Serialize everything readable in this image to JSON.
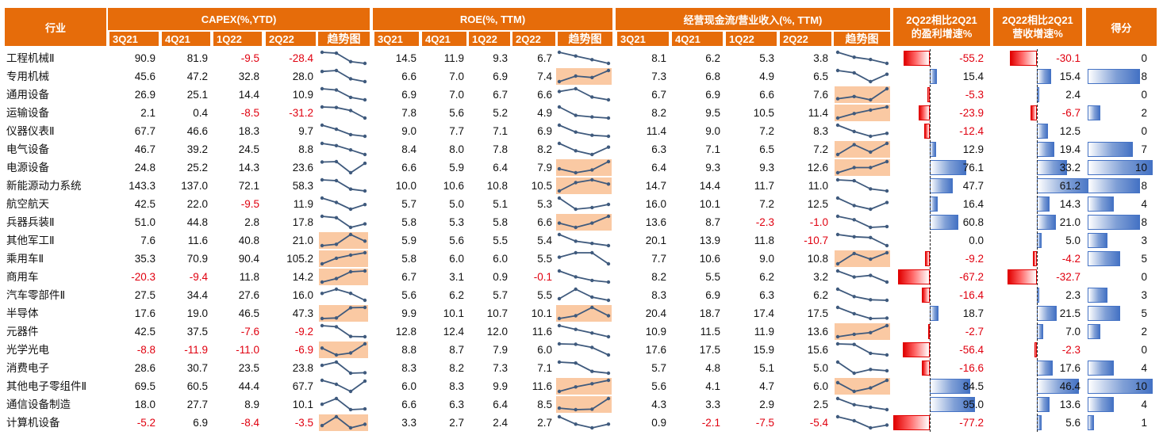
{
  "chart_data": {
    "type": "table",
    "headers": {
      "industry": "行业",
      "capex": "CAPEX(%,YTD)",
      "roe": "ROE(%, TTM)",
      "cash": "经营现金流/营业收入(%, TTM)",
      "profit_growth_line1": "2Q22相比2Q21",
      "profit_growth_line2": "的盈利增速%",
      "revenue_growth_line1": "2Q22相比2Q21",
      "revenue_growth_line2": "营收增速%",
      "score": "得分",
      "quarters": [
        "3Q21",
        "4Q21",
        "1Q22",
        "2Q22"
      ],
      "trend": "趋势图"
    },
    "rows": [
      {
        "name": "工程机械Ⅱ",
        "capex": [
          90.9,
          81.9,
          -9.5,
          -28.4
        ],
        "roe": [
          14.5,
          11.9,
          9.3,
          6.7
        ],
        "cash": [
          8.1,
          6.2,
          5.3,
          3.8
        ],
        "profit_growth": -55.2,
        "revenue_growth": -30.1,
        "score": 0
      },
      {
        "name": "专用机械",
        "capex": [
          45.6,
          47.2,
          32.8,
          28.0
        ],
        "roe": [
          6.6,
          7.0,
          6.9,
          7.4
        ],
        "cash": [
          7.3,
          6.8,
          4.9,
          6.5
        ],
        "profit_growth": 15.4,
        "revenue_growth": 15.4,
        "score": 8
      },
      {
        "name": "通用设备",
        "capex": [
          26.9,
          25.1,
          14.4,
          10.9
        ],
        "roe": [
          6.9,
          7.0,
          6.7,
          6.6
        ],
        "cash": [
          6.7,
          6.9,
          6.6,
          7.6
        ],
        "profit_growth": -5.3,
        "revenue_growth": 2.4,
        "score": 0
      },
      {
        "name": "运输设备",
        "capex": [
          2.1,
          0.4,
          -8.5,
          -31.2
        ],
        "roe": [
          7.8,
          5.6,
          5.2,
          4.9
        ],
        "cash": [
          8.2,
          9.5,
          10.5,
          11.4
        ],
        "profit_growth": -23.9,
        "revenue_growth": -6.7,
        "score": 2
      },
      {
        "name": "仪器仪表Ⅱ",
        "capex": [
          67.7,
          46.6,
          18.3,
          9.7
        ],
        "roe": [
          9.0,
          7.7,
          7.1,
          6.9
        ],
        "cash": [
          11.4,
          9.0,
          7.2,
          8.3
        ],
        "profit_growth": -12.4,
        "revenue_growth": 12.5,
        "score": 0
      },
      {
        "name": "电气设备",
        "capex": [
          46.7,
          39.2,
          24.5,
          8.8
        ],
        "roe": [
          8.4,
          8.0,
          7.8,
          8.2
        ],
        "cash": [
          6.3,
          7.1,
          6.5,
          7.2
        ],
        "profit_growth": 12.9,
        "revenue_growth": 19.4,
        "score": 7
      },
      {
        "name": "电源设备",
        "capex": [
          24.8,
          25.2,
          14.3,
          23.6
        ],
        "roe": [
          6.6,
          5.9,
          6.4,
          7.9
        ],
        "cash": [
          6.4,
          9.3,
          9.3,
          12.6
        ],
        "profit_growth": 76.1,
        "revenue_growth": 33.2,
        "score": 10
      },
      {
        "name": "新能源动力系统",
        "capex": [
          143.3,
          137.0,
          72.1,
          58.3
        ],
        "roe": [
          10.0,
          10.6,
          10.8,
          10.5
        ],
        "cash": [
          14.7,
          14.4,
          11.7,
          11.0
        ],
        "profit_growth": 47.7,
        "revenue_growth": 61.2,
        "score": 8
      },
      {
        "name": "航空航天",
        "capex": [
          42.5,
          22.0,
          -9.5,
          11.9
        ],
        "roe": [
          5.7,
          5.0,
          5.1,
          5.3
        ],
        "cash": [
          16.0,
          10.1,
          7.2,
          12.5
        ],
        "profit_growth": 16.4,
        "revenue_growth": 14.3,
        "score": 4
      },
      {
        "name": "兵器兵装Ⅱ",
        "capex": [
          51.0,
          44.8,
          2.8,
          17.8
        ],
        "roe": [
          5.8,
          5.3,
          5.8,
          6.6
        ],
        "cash": [
          13.6,
          8.7,
          -2.3,
          -1.0
        ],
        "profit_growth": 60.8,
        "revenue_growth": 21.0,
        "score": 8
      },
      {
        "name": "其他军工Ⅱ",
        "capex": [
          7.6,
          11.6,
          40.8,
          21.0
        ],
        "roe": [
          5.9,
          5.6,
          5.5,
          5.4
        ],
        "cash": [
          20.1,
          13.9,
          11.8,
          -10.7
        ],
        "profit_growth": 0.0,
        "revenue_growth": 5.0,
        "score": 3
      },
      {
        "name": "乘用车Ⅱ",
        "capex": [
          35.3,
          70.9,
          90.4,
          105.2
        ],
        "roe": [
          5.8,
          6.0,
          6.0,
          5.5
        ],
        "cash": [
          7.7,
          10.6,
          9.0,
          10.8
        ],
        "profit_growth": -9.2,
        "revenue_growth": -4.2,
        "score": 5
      },
      {
        "name": "商用车",
        "capex": [
          -20.3,
          -9.4,
          11.8,
          14.2
        ],
        "roe": [
          6.7,
          3.1,
          0.9,
          -0.1
        ],
        "cash": [
          8.2,
          5.5,
          6.2,
          3.2
        ],
        "profit_growth": -67.2,
        "revenue_growth": -32.7,
        "score": 0
      },
      {
        "name": "汽车零部件Ⅱ",
        "capex": [
          27.5,
          34.4,
          27.6,
          16.0
        ],
        "roe": [
          5.6,
          6.2,
          5.7,
          5.5
        ],
        "cash": [
          8.3,
          6.9,
          6.3,
          6.2
        ],
        "profit_growth": -16.4,
        "revenue_growth": 2.3,
        "score": 3
      },
      {
        "name": "半导体",
        "capex": [
          17.6,
          19.0,
          46.5,
          47.3
        ],
        "roe": [
          9.9,
          10.1,
          10.7,
          10.1
        ],
        "cash": [
          20.4,
          18.7,
          17.4,
          17.5
        ],
        "profit_growth": 18.7,
        "revenue_growth": 21.5,
        "score": 5
      },
      {
        "name": "元器件",
        "capex": [
          42.5,
          37.5,
          -7.6,
          -9.2
        ],
        "roe": [
          12.8,
          12.4,
          12.0,
          11.6
        ],
        "cash": [
          10.9,
          11.5,
          11.9,
          13.6
        ],
        "profit_growth": -2.7,
        "revenue_growth": 7.0,
        "score": 2
      },
      {
        "name": "光学光电",
        "capex": [
          -8.8,
          -11.9,
          -11.0,
          -6.9
        ],
        "roe": [
          8.8,
          8.7,
          7.9,
          6.0
        ],
        "cash": [
          17.6,
          17.5,
          15.9,
          15.6
        ],
        "profit_growth": -56.4,
        "revenue_growth": -2.3,
        "score": 0
      },
      {
        "name": "消费电子",
        "capex": [
          28.6,
          30.7,
          23.5,
          23.8
        ],
        "roe": [
          8.3,
          8.2,
          7.3,
          7.1
        ],
        "cash": [
          5.7,
          4.8,
          5.1,
          5.0
        ],
        "profit_growth": -16.6,
        "revenue_growth": 17.6,
        "score": 4
      },
      {
        "name": "其他电子零组件Ⅱ",
        "capex": [
          69.5,
          60.5,
          44.4,
          67.7
        ],
        "roe": [
          6.0,
          8.3,
          9.9,
          11.6
        ],
        "cash": [
          5.6,
          4.1,
          4.7,
          6.0
        ],
        "profit_growth": 84.5,
        "revenue_growth": 46.4,
        "score": 10
      },
      {
        "name": "通信设备制造",
        "capex": [
          18.0,
          27.7,
          8.9,
          10.1
        ],
        "roe": [
          6.6,
          6.3,
          6.4,
          8.5
        ],
        "cash": [
          4.3,
          3.3,
          2.9,
          2.5
        ],
        "profit_growth": 95.0,
        "revenue_growth": 13.6,
        "score": 4
      },
      {
        "name": "计算机设备",
        "capex": [
          -5.2,
          6.9,
          -8.4,
          -3.5
        ],
        "roe": [
          3.3,
          2.7,
          2.4,
          2.7
        ],
        "cash": [
          0.9,
          -2.1,
          -7.5,
          -5.4
        ],
        "profit_growth": -77.2,
        "revenue_growth": 5.6,
        "score": 1
      }
    ],
    "colors": {
      "header": "#e66c0a",
      "negative_text": "#e0000f",
      "trend_highlight": "#fac9a3",
      "positive_bar": "#4472c4",
      "negative_bar": "#e00000",
      "sparkline": "#3f5a7d"
    }
  }
}
